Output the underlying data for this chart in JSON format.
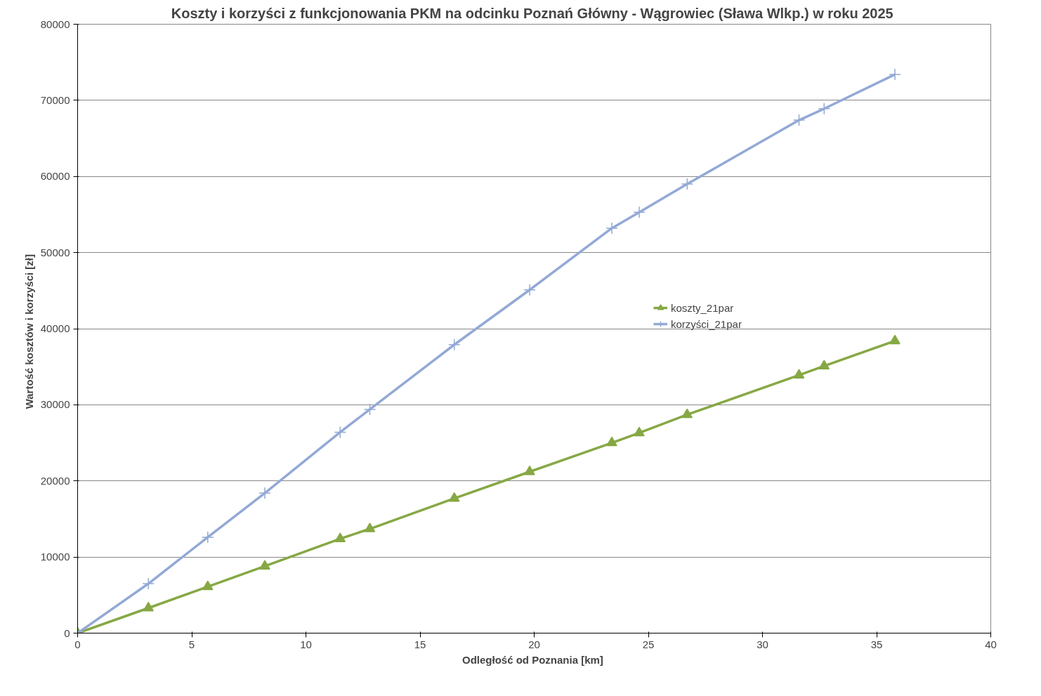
{
  "chart_data": {
    "type": "line",
    "title": "Koszty i korzyści z funkcjonowania PKM na odcinku Poznań Główny  - Wągrowiec (Sława Wlkp.) w roku 2025",
    "xlabel": "Odległość od Poznania  [km]",
    "ylabel": "Wartość kosztów  i korzyści  [zł]",
    "x": [
      0,
      3.1,
      5.7,
      8.2,
      11.5,
      12.8,
      16.5,
      19.8,
      23.4,
      24.6,
      26.7,
      31.6,
      32.7,
      35.8
    ],
    "series": [
      {
        "name": "koszty_21par",
        "color": "#86a844",
        "marker": "triangle",
        "values": [
          0,
          3300,
          6100,
          8800,
          12400,
          13700,
          17700,
          21200,
          25000,
          26300,
          28700,
          33900,
          35100,
          38400
        ]
      },
      {
        "name": "korzyści_21par",
        "color": "#93a9d6",
        "marker": "cross",
        "values": [
          0,
          6500,
          12600,
          18400,
          26400,
          29400,
          37900,
          45100,
          53200,
          55300,
          59000,
          67400,
          68900,
          73400
        ]
      }
    ],
    "xlim": [
      0,
      40
    ],
    "xticks": [
      0,
      5,
      10,
      15,
      20,
      25,
      30,
      35,
      40
    ],
    "ylim": [
      0,
      80000
    ],
    "yticks": [
      0,
      10000,
      20000,
      30000,
      40000,
      50000,
      60000,
      70000,
      80000
    ],
    "grid": "y",
    "legend": "right"
  }
}
